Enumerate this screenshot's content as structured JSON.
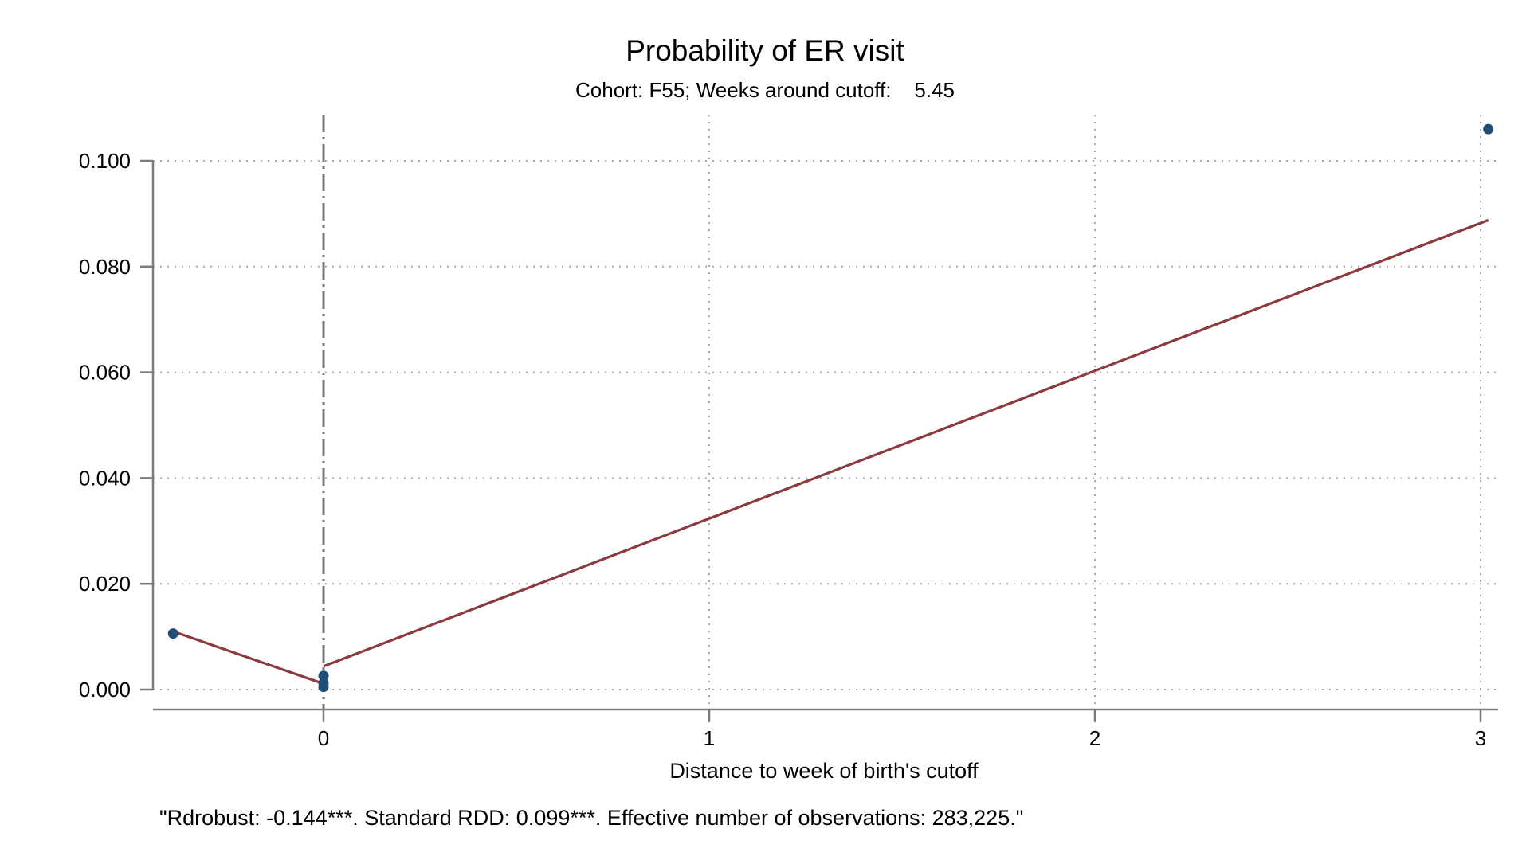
{
  "chart_data": {
    "type": "scatter",
    "title": "Probability of ER visit",
    "subtitle": "Cohort: F55; Weeks around cutoff:    5.45",
    "xlabel": "Distance to week of birth's cutoff",
    "ylabel": "",
    "note": "\"Rdrobust: -0.144***. Standard RDD: 0.099***. Effective number of observations: 283,225.\"",
    "xlim": [
      -0.445,
      3.03
    ],
    "ylim": [
      0.0,
      0.1
    ],
    "x_ticks": [
      0,
      1,
      2,
      3
    ],
    "x_tick_labels": [
      "0",
      "1",
      "2",
      "3"
    ],
    "y_ticks": [
      0.0,
      0.02,
      0.04,
      0.06,
      0.08,
      0.1
    ],
    "y_tick_labels": [
      "0.000",
      "0.020",
      "0.040",
      "0.060",
      "0.080",
      "0.100"
    ],
    "grid": true,
    "cutoff_x": 0,
    "series": [
      {
        "kind": "points",
        "color": "#1f4e79",
        "points": [
          {
            "x": -0.39,
            "y": 0.0106
          },
          {
            "x": 0.0,
            "y": 0.0026
          },
          {
            "x": 0.0,
            "y": 0.0012
          },
          {
            "x": 0.0,
            "y": 0.0005
          },
          {
            "x": 3.02,
            "y": 0.106
          }
        ]
      },
      {
        "kind": "fit-left",
        "color": "#8b3a3e",
        "points": [
          {
            "x": -0.39,
            "y": 0.011
          },
          {
            "x": 0.0,
            "y": 0.0011
          }
        ]
      },
      {
        "kind": "fit-right",
        "color": "#8b3a3e",
        "points": [
          {
            "x": 0.0,
            "y": 0.0044
          },
          {
            "x": 3.02,
            "y": 0.0888
          }
        ]
      }
    ],
    "colors": {
      "axis": "#7a7a7a",
      "grid": "#a8a8a8",
      "cutoff_line": "#7a7a7a"
    }
  }
}
